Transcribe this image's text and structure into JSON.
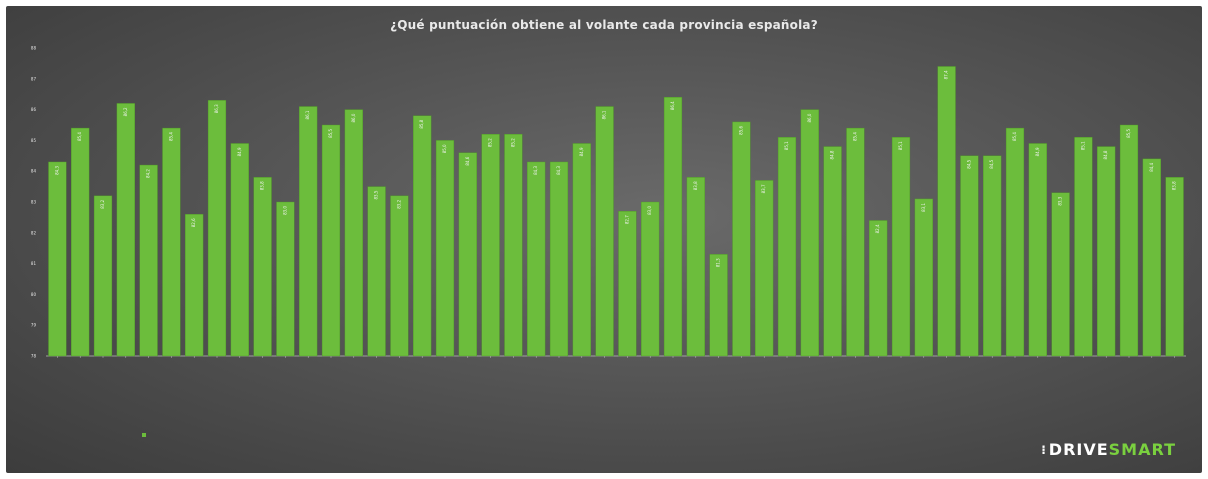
{
  "chart_data": {
    "type": "bar",
    "title": "¿Qué puntuación obtiene al volante cada provincia española?",
    "legend": {
      "position": "bottom-left"
    },
    "series": [
      {
        "values": [
          84.3,
          85.4,
          83.2,
          86.2,
          84.2,
          85.4,
          82.6,
          86.3,
          84.9,
          83.8,
          83.0,
          86.1,
          85.5,
          86.0,
          83.5,
          83.2,
          85.8,
          85.0,
          84.6,
          85.2,
          85.2,
          84.3,
          84.3,
          84.9,
          86.1,
          82.7,
          83.0,
          86.4,
          83.8,
          81.3,
          85.6,
          83.7,
          85.1,
          86.0,
          84.8,
          85.4,
          82.4,
          85.1,
          83.1,
          87.4,
          84.5,
          84.5,
          85.4,
          84.9,
          83.3,
          85.1,
          84.8,
          85.5,
          84.4,
          83.8
        ]
      }
    ],
    "ylim": [
      78,
      88
    ],
    "yticks": [
      78,
      79,
      80,
      81,
      82,
      83,
      84,
      85,
      86,
      87,
      88
    ],
    "grid": false
  },
  "brand": {
    "mark": "⁝",
    "part1": "DRIVE",
    "part2": "SMART"
  },
  "colors": {
    "bar": "#6cbd3c",
    "bar_edge": "#4f9a26",
    "text": "#e6e6e6",
    "axis": "#bdbdbd",
    "brand_green": "#7ad03f"
  }
}
